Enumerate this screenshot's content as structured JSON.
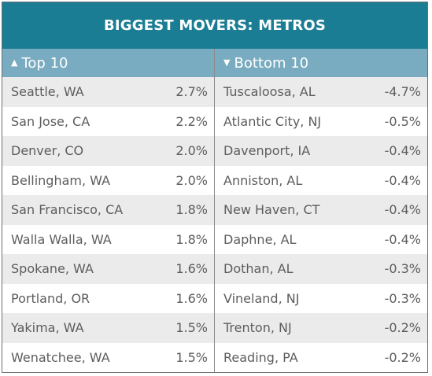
{
  "title": "BIGGEST MOVERS: METROS",
  "top": {
    "label": "Top 10",
    "rows": [
      {
        "metro": "Seattle, WA",
        "value": "2.7%"
      },
      {
        "metro": "San Jose, CA",
        "value": "2.2%"
      },
      {
        "metro": "Denver, CO",
        "value": "2.0%"
      },
      {
        "metro": "Bellingham, WA",
        "value": "2.0%"
      },
      {
        "metro": "San Francisco, CA",
        "value": "1.8%"
      },
      {
        "metro": "Walla Walla, WA",
        "value": "1.8%"
      },
      {
        "metro": "Spokane, WA",
        "value": "1.6%"
      },
      {
        "metro": "Portland, OR",
        "value": "1.6%"
      },
      {
        "metro": "Yakima, WA",
        "value": "1.5%"
      },
      {
        "metro": "Wenatchee, WA",
        "value": "1.5%"
      }
    ]
  },
  "bottom": {
    "label": "Bottom 10",
    "rows": [
      {
        "metro": "Tuscaloosa, AL",
        "value": "-4.7%"
      },
      {
        "metro": "Atlantic City, NJ",
        "value": "-0.5%"
      },
      {
        "metro": "Davenport, IA",
        "value": "-0.4%"
      },
      {
        "metro": "Anniston, AL",
        "value": "-0.4%"
      },
      {
        "metro": "New Haven, CT",
        "value": "-0.4%"
      },
      {
        "metro": "Daphne, AL",
        "value": "-0.4%"
      },
      {
        "metro": "Dothan, AL",
        "value": "-0.3%"
      },
      {
        "metro": "Vineland, NJ",
        "value": "-0.3%"
      },
      {
        "metro": "Trenton, NJ",
        "value": "-0.2%"
      },
      {
        "metro": "Reading, PA",
        "value": "-0.2%"
      }
    ]
  },
  "colors": {
    "title_bg": "#1b7d93",
    "header_bg": "#79acc0",
    "row_alt": "#ebebeb",
    "text": "#5d5d5d"
  }
}
